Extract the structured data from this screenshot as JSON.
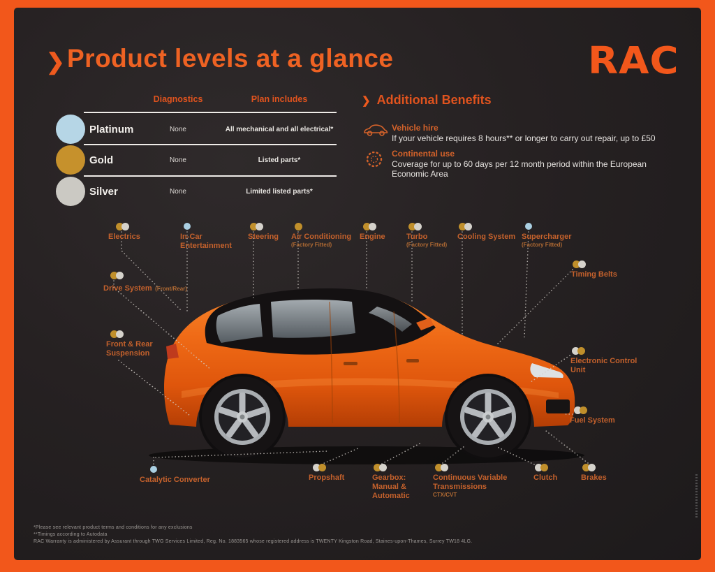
{
  "brand": {
    "logo": "RAC"
  },
  "icons": {
    "chevron": "❯"
  },
  "header": {
    "title": "Product levels at a glance"
  },
  "colors": {
    "brand_orange": "#f2571b",
    "label_orange": "#c4612c",
    "platinum_dot": "#aacfe2",
    "gold_dot": "#c08f2b",
    "silver_dot": "#d5d2cb"
  },
  "table": {
    "columns": [
      "Diagnostics",
      "Plan includes"
    ],
    "rows": [
      {
        "tier": "Platinum",
        "swatch": "#b6d6e6",
        "diagnostics": "None",
        "plan_includes": "All mechanical and all electrical*"
      },
      {
        "tier": "Gold",
        "swatch": "#c6912c",
        "diagnostics": "None",
        "plan_includes": "Listed parts*"
      },
      {
        "tier": "Silver",
        "swatch": "#cbc9c3",
        "diagnostics": "None",
        "plan_includes": "Limited listed parts*"
      }
    ]
  },
  "benefits": {
    "title": "Additional Benefits",
    "items": [
      {
        "icon": "vehicle-hire-car-icon",
        "title": "Vehicle hire",
        "description": "If your vehicle requires 8 hours** or longer to carry out repair, up to £50"
      },
      {
        "icon": "dotted-circle-icon",
        "title": "Continental use",
        "description": "Coverage for up to 60 days per 12 month period within the European Economic Area"
      }
    ]
  },
  "diagram": {
    "labels": [
      {
        "name": "Electrics",
        "dots": [
          "gold",
          "silver"
        ]
      },
      {
        "name": "In-Car Entertainment",
        "dots": [
          "platinum"
        ]
      },
      {
        "name": "Steering",
        "dots": [
          "gold",
          "silver"
        ]
      },
      {
        "name": "Air Conditioning",
        "sub": "(Factory Fitted)",
        "dots": [
          "gold"
        ]
      },
      {
        "name": "Engine",
        "dots": [
          "gold",
          "silver"
        ]
      },
      {
        "name": "Turbo",
        "sub": "(Factory Fitted)",
        "dots": [
          "gold",
          "silver"
        ]
      },
      {
        "name": "Cooling System",
        "dots": [
          "gold",
          "silver"
        ]
      },
      {
        "name": "Supercharger",
        "sub": "(Factory Fitted)",
        "dots": [
          "platinum"
        ]
      },
      {
        "name": "Timing Belts",
        "dots": [
          "gold",
          "silver"
        ]
      },
      {
        "name": "Drive System",
        "sub": "(Front/Rear)",
        "dots": [
          "gold",
          "silver"
        ]
      },
      {
        "name": "Front & Rear Suspension",
        "dots": [
          "gold",
          "silver"
        ]
      },
      {
        "name": "Electronic Control Unit",
        "dots": [
          "silver",
          "gold"
        ]
      },
      {
        "name": "Fuel System",
        "dots": [
          "silver",
          "gold"
        ]
      },
      {
        "name": "Catalytic Converter",
        "dots": [
          "platinum"
        ]
      },
      {
        "name": "Propshaft",
        "dots": [
          "silver",
          "gold"
        ]
      },
      {
        "name": "Gearbox: Manual & Automatic",
        "dots": [
          "gold",
          "silver"
        ]
      },
      {
        "name": "Continuous Variable Transmissions",
        "sub": "CTX/CVT",
        "dots": [
          "gold",
          "silver"
        ]
      },
      {
        "name": "Clutch",
        "dots": [
          "silver",
          "gold"
        ]
      },
      {
        "name": "Brakes",
        "dots": [
          "gold",
          "silver"
        ]
      }
    ]
  },
  "footer": {
    "lines": [
      "*Please see relevant product terms and conditions for any exclusions",
      "**Timings according to Autodata",
      "RAC Warranty is administered by Assurant through TWG Services Limited, Reg. No. 1883565  whose registered address is TWENTY Kingston Road, Staines-upon-Thames, Surrey TW18 4LG."
    ]
  }
}
